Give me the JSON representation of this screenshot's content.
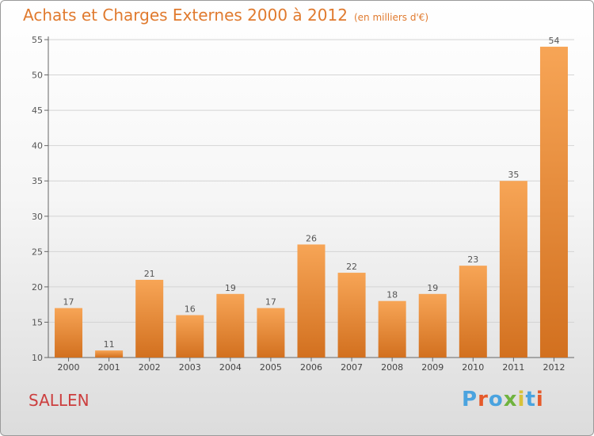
{
  "title": "Achats et Charges Externes 2000 à 2012",
  "unit": "(en milliers d'€)",
  "commune": "SALLEN",
  "logo": "Proxiti",
  "colors": {
    "title": "#e07a2e",
    "bar_light": "#f7a556",
    "bar_dark": "#d2701f",
    "commune": "#cc3e3e",
    "logo_letters": [
      "#4aa3df",
      "#e65a2a",
      "#4aa3df",
      "#6fb33e",
      "#d7c23a",
      "#4aa3df",
      "#e65a2a"
    ]
  },
  "chart_data": {
    "type": "bar",
    "categories": [
      "2000",
      "2001",
      "2002",
      "2003",
      "2004",
      "2005",
      "2006",
      "2007",
      "2008",
      "2009",
      "2010",
      "2011",
      "2012"
    ],
    "values": [
      17,
      11,
      21,
      16,
      19,
      17,
      26,
      22,
      18,
      19,
      23,
      35,
      54
    ],
    "ylim": [
      10,
      55
    ],
    "yticks": [
      10,
      15,
      20,
      25,
      30,
      35,
      40,
      45,
      50,
      55
    ],
    "grid": true,
    "data_labels": true
  }
}
